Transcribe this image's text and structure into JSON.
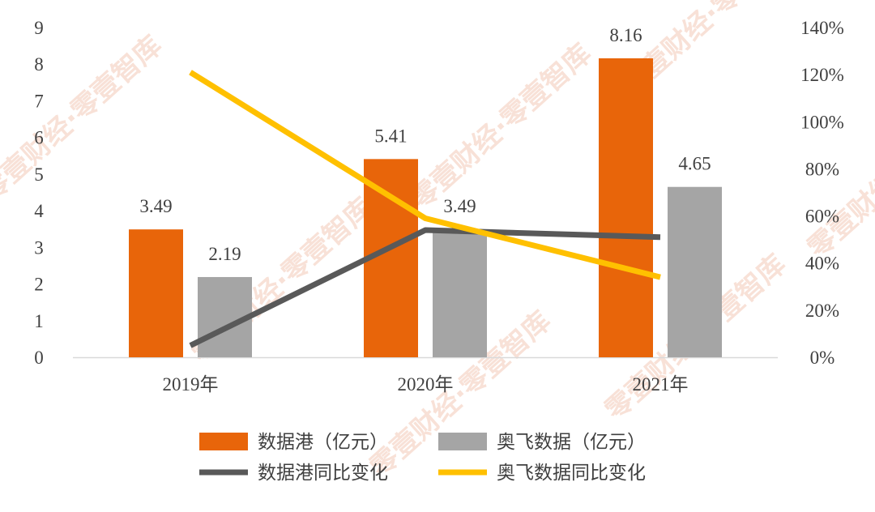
{
  "chart_data": {
    "type": "bar",
    "categories": [
      "2019年",
      "2020年",
      "2021年"
    ],
    "series": [
      {
        "name": "数据港（亿元）",
        "kind": "bar",
        "axis": "left",
        "color": "#E8650A",
        "values": [
          3.49,
          5.41,
          8.16
        ]
      },
      {
        "name": "奥飞数据（亿元）",
        "kind": "bar",
        "axis": "left",
        "color": "#A5A5A5",
        "values": [
          2.19,
          3.49,
          4.65
        ]
      },
      {
        "name": "数据港同比变化",
        "kind": "line",
        "axis": "right",
        "color": "#595959",
        "values": [
          5,
          54,
          51
        ]
      },
      {
        "name": "奥飞数据同比变化",
        "kind": "line",
        "axis": "right",
        "color": "#FFC000",
        "values": [
          121,
          59,
          34
        ]
      }
    ],
    "y_left": {
      "ticks": [
        "0",
        "1",
        "2",
        "3",
        "4",
        "5",
        "6",
        "7",
        "8",
        "9"
      ],
      "ylim": [
        0,
        9
      ]
    },
    "y_right": {
      "ticks": [
        "0%",
        "20%",
        "40%",
        "60%",
        "80%",
        "100%",
        "120%",
        "140%"
      ],
      "ylim": [
        0,
        140
      ]
    },
    "data_labels": {
      "数据港（亿元）": [
        "3.49",
        "5.41",
        "8.16"
      ],
      "奥飞数据（亿元）": [
        "2.19",
        "3.49",
        "4.65"
      ]
    },
    "legend_position": "bottom",
    "grid": false
  },
  "watermark": "零壹财经·零壹智库"
}
